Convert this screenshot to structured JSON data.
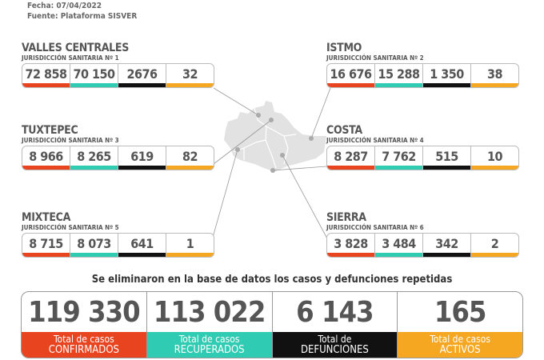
{
  "header": {
    "date": "Fecha: 07/04/2022",
    "source": "Fuente: Plataforma SISVER"
  },
  "colors": {
    "confirmados": "#e8441f",
    "recuperados": "#2fcbb2",
    "defunciones": "#111111",
    "activos": "#f5a722"
  },
  "regions": [
    {
      "name": "VALLES CENTRALES",
      "sub": "JURISDICCIÓN SANITARIA Nº 1",
      "values": [
        "72 858",
        "70 150",
        "2676",
        "32"
      ]
    },
    {
      "name": "ISTMO",
      "sub": "JURISDICCIÓN SANITARIA Nº 2",
      "values": [
        "16 676",
        "15 288",
        "1 350",
        "38"
      ]
    },
    {
      "name": "TUXTEPEC",
      "sub": "JURISDICCIÓN SANITARIA Nº 3",
      "values": [
        "8 966",
        "8 265",
        "619",
        "82"
      ]
    },
    {
      "name": "COSTA",
      "sub": "JURISDICCIÓN SANITARIA Nº 4",
      "values": [
        "8 287",
        "7 762",
        "515",
        "10"
      ]
    },
    {
      "name": "MIXTECA",
      "sub": "JURISDICCIÓN SANITARIA Nº 5",
      "values": [
        "8 715",
        "8 073",
        "641",
        "1"
      ]
    },
    {
      "name": "SIERRA",
      "sub": "JURISDICCIÓN SANITARIA Nº 6",
      "values": [
        "3 828",
        "3 484",
        "342",
        "2"
      ]
    }
  ],
  "note": "Se eliminaron en la base de datos los casos  y defunciones repetidas",
  "totals": [
    {
      "value": "119 330",
      "line1": "Total de casos",
      "line2": "CONFIRMADOS"
    },
    {
      "value": "113 022",
      "line1": "Total de casos",
      "line2": "RECUPERADOS"
    },
    {
      "value": "6 143",
      "line1": "Total de",
      "line2": "DEFUNCIONES"
    },
    {
      "value": "165",
      "line1": "Total de casos",
      "line2": "ACTIVOS"
    }
  ]
}
